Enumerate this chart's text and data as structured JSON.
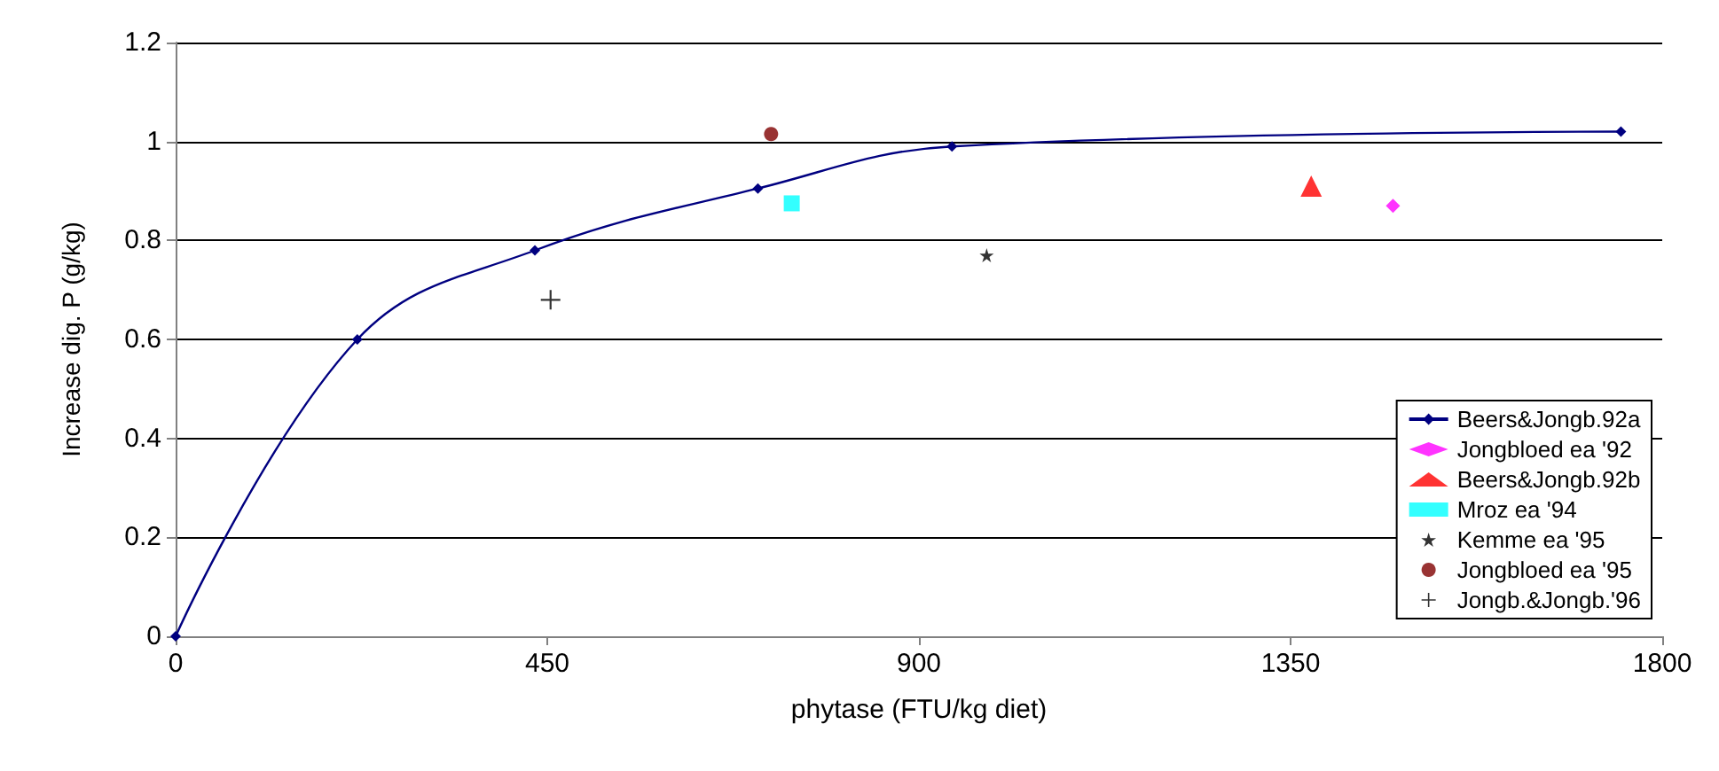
{
  "chart_data": {
    "type": "scatter",
    "xlabel": "phytase (FTU/kg diet)",
    "ylabel": "Increase dig. P (g/kg)",
    "xlim": [
      0,
      1800
    ],
    "xticks": [
      0,
      450,
      900,
      1350,
      1800
    ],
    "ylim": [
      0,
      1.2
    ],
    "yticks": [
      0,
      0.2,
      0.4,
      0.6,
      0.8,
      1,
      1.2
    ],
    "grid": "y",
    "legend": "bottom right",
    "series": [
      {
        "name": "Beers&Jongb.92a",
        "type": "line",
        "marker": "diamond",
        "color": "#000080",
        "x": [
          0,
          220,
          435,
          705,
          940,
          1750
        ],
        "values": [
          0,
          0.6,
          0.78,
          0.905,
          0.99,
          1.02
        ]
      },
      {
        "name": "Jongbloed ea '92",
        "marker": "diamond",
        "color": "#ff00ff",
        "x": [
          1474
        ],
        "values": [
          0.87
        ]
      },
      {
        "name": "Beers&Jongb.92b",
        "marker": "triangle",
        "color": "#ff0000",
        "x": [
          1375
        ],
        "values": [
          0.91
        ]
      },
      {
        "name": "Mroz ea '94",
        "marker": "square",
        "color": "#00ffff",
        "x": [
          746
        ],
        "values": [
          0.875
        ]
      },
      {
        "name": "Kemme ea '95",
        "marker": "star",
        "color": "#000000",
        "x": [
          982
        ],
        "values": [
          0.77
        ]
      },
      {
        "name": "Jongbloed ea '95",
        "marker": "circle",
        "color": "#800000",
        "x": [
          721
        ],
        "values": [
          1.015
        ]
      },
      {
        "name": "Jongb.&Jongb.'96",
        "marker": "cross",
        "color": "#000000",
        "x": [
          454
        ],
        "values": [
          0.68
        ]
      }
    ]
  }
}
